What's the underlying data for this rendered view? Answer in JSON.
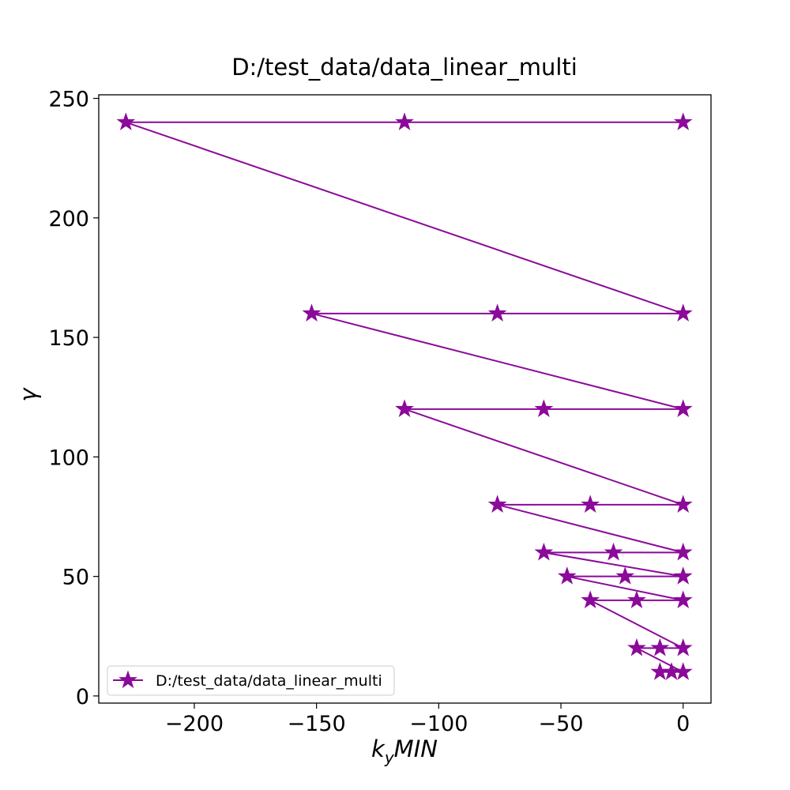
{
  "chart_data": {
    "type": "line",
    "title": "D:/test_data/data_linear_multi",
    "xlabel_main": "k",
    "xlabel_sub": "y",
    "xlabel_rest": "MIN",
    "ylabel": "γ",
    "xlim": [
      -239.1,
      11.4
    ],
    "ylim": [
      -3,
      251.5
    ],
    "xticks": [
      -200,
      -150,
      -100,
      -50,
      0
    ],
    "xtick_labels": [
      "−200",
      "−150",
      "−100",
      "−50",
      "0"
    ],
    "yticks": [
      0,
      50,
      100,
      150,
      200,
      250
    ],
    "ytick_labels": [
      "0",
      "50",
      "100",
      "150",
      "200",
      "250"
    ],
    "legend_position": "lower-left",
    "grid": false,
    "series": [
      {
        "name": "D:/test_data/data_linear_multi",
        "color": "#8B0A9A",
        "marker": "star",
        "points": [
          {
            "x": -9.5,
            "y": 10
          },
          {
            "x": -4.75,
            "y": 10
          },
          {
            "x": 0,
            "y": 10
          },
          {
            "x": -19,
            "y": 20
          },
          {
            "x": -9.5,
            "y": 20
          },
          {
            "x": 0,
            "y": 20
          },
          {
            "x": -38,
            "y": 40
          },
          {
            "x": -19,
            "y": 40
          },
          {
            "x": 0,
            "y": 40
          },
          {
            "x": -47.5,
            "y": 50
          },
          {
            "x": -23.75,
            "y": 50
          },
          {
            "x": 0,
            "y": 50
          },
          {
            "x": -57,
            "y": 60
          },
          {
            "x": -28.5,
            "y": 60
          },
          {
            "x": 0,
            "y": 60
          },
          {
            "x": -76,
            "y": 80
          },
          {
            "x": -38,
            "y": 80
          },
          {
            "x": 0,
            "y": 80
          },
          {
            "x": -114,
            "y": 120
          },
          {
            "x": -57,
            "y": 120
          },
          {
            "x": 0,
            "y": 120
          },
          {
            "x": -152,
            "y": 160
          },
          {
            "x": -76,
            "y": 160
          },
          {
            "x": 0,
            "y": 160
          },
          {
            "x": -228,
            "y": 240
          },
          {
            "x": -114,
            "y": 240
          },
          {
            "x": 0,
            "y": 240
          }
        ]
      }
    ]
  }
}
